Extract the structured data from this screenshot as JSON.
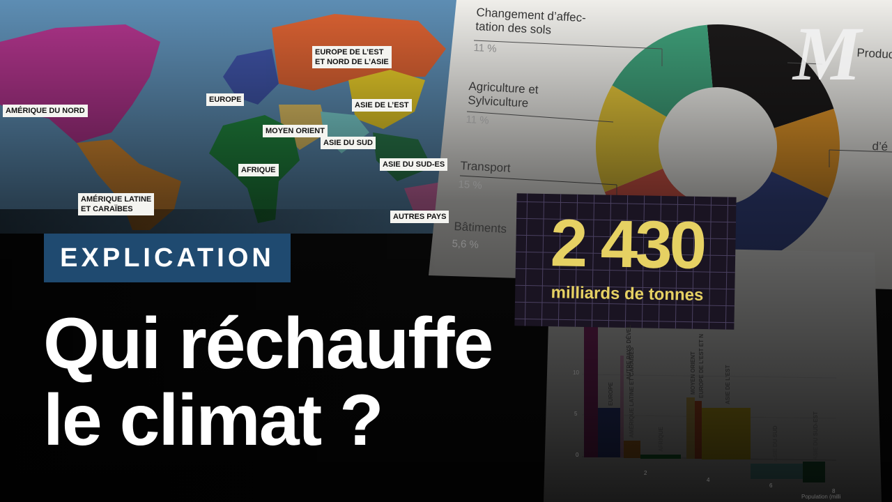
{
  "map": {
    "labels": [
      "EUROPE DE L’EST\nET NORD DE L’ASIE",
      "EUROPE",
      "AMÉRIQUE DU NORD",
      "ASIE DE L’EST",
      "MOYEN ORIENT",
      "ASIE DU SUD",
      "AFRIQUE",
      "ASIE DU SUD-ES",
      "AMÉRIQUE LATINE\nET CARAÏBES",
      "AUTRES PAYS"
    ]
  },
  "donut_panel": {
    "items": [
      {
        "label": "Changement d’affec-\ntation des sols",
        "value": "11 %"
      },
      {
        "label": "Agriculture et\nSylviculture",
        "value": "11 %"
      },
      {
        "label": "Transport",
        "value": "15 %"
      },
      {
        "label": "Bâtiments",
        "value": "5,6 %"
      }
    ],
    "cut_labels": [
      "Product",
      "d’é"
    ]
  },
  "stat": {
    "number": "2 430",
    "unit": "milliards de tonnes"
  },
  "badge": "EXPLICATION",
  "title": [
    "Qui réchauffe",
    "le climat ?"
  ],
  "bar_panel": {
    "yticks": [
      "10",
      "5",
      "0"
    ],
    "xticks": [
      "2",
      "4",
      "6",
      "8"
    ],
    "bar_labels": [
      "EUROPE",
      "AUTRE PAYS DÉVEL",
      "AMÉRIQUE LATINE ET CARAÏBES",
      "AFRIQUE",
      "MOYEN ORIENT",
      "EUROPE DE L’EST ET N",
      "ASIE DE L’EST",
      "ASIE DU SUD",
      "ASIE DU SUD-EST"
    ],
    "x_label": "Population (milli"
  },
  "logo": "M"
}
